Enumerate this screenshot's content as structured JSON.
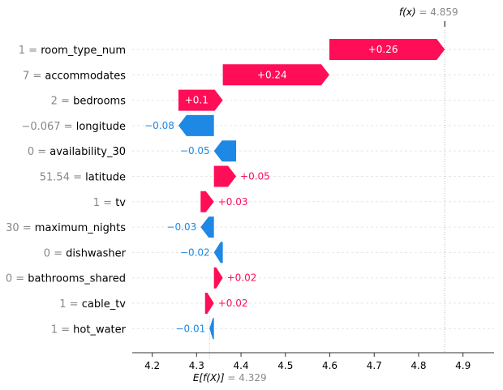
{
  "chart_data": {
    "type": "waterfall",
    "top_label": {
      "prefix": "f(x)",
      "value": "4.859"
    },
    "bottom_label": {
      "prefix": "E[f(X)]",
      "value": "4.329"
    },
    "base_value": 4.329,
    "output_value": 4.859,
    "xlim": [
      4.155,
      4.97
    ],
    "xticks": [
      {
        "value": 4.2,
        "label": "4.2"
      },
      {
        "value": 4.3,
        "label": "4.3"
      },
      {
        "value": 4.4,
        "label": "4.4"
      },
      {
        "value": 4.5,
        "label": "4.5"
      },
      {
        "value": 4.6,
        "label": "4.6"
      },
      {
        "value": 4.7,
        "label": "4.7"
      },
      {
        "value": 4.8,
        "label": "4.8"
      },
      {
        "value": 4.9,
        "label": "4.9"
      }
    ],
    "features": [
      {
        "value_text": "1 =",
        "name": "room_type_num",
        "contribution": 0.26,
        "label": "+0.26",
        "start": 4.599
      },
      {
        "value_text": "7 =",
        "name": "accommodates",
        "contribution": 0.24,
        "label": "+0.24",
        "start": 4.359
      },
      {
        "value_text": "2 =",
        "name": "bedrooms",
        "contribution": 0.1,
        "label": "+0.1",
        "start": 4.259
      },
      {
        "value_text": "−0.067 =",
        "name": "longitude",
        "contribution": -0.08,
        "label": "−0.08",
        "start": 4.339
      },
      {
        "value_text": "0 =",
        "name": "availability_30",
        "contribution": -0.05,
        "label": "−0.05",
        "start": 4.389
      },
      {
        "value_text": "51.54 =",
        "name": "latitude",
        "contribution": 0.05,
        "label": "+0.05",
        "start": 4.339
      },
      {
        "value_text": "1 =",
        "name": "tv",
        "contribution": 0.03,
        "label": "+0.03",
        "start": 4.309
      },
      {
        "value_text": "30 =",
        "name": "maximum_nights",
        "contribution": -0.03,
        "label": "−0.03",
        "start": 4.339
      },
      {
        "value_text": "0 =",
        "name": "dishwasher",
        "contribution": -0.02,
        "label": "−0.02",
        "start": 4.359
      },
      {
        "value_text": "0 =",
        "name": "bathrooms_shared",
        "contribution": 0.02,
        "label": "+0.02",
        "start": 4.339
      },
      {
        "value_text": "1 =",
        "name": "cable_tv",
        "contribution": 0.02,
        "label": "+0.02",
        "start": 4.319
      },
      {
        "value_text": "1 =",
        "name": "hot_water",
        "contribution": -0.01,
        "label": "−0.01",
        "start": 4.339
      }
    ],
    "colors": {
      "positive": "#ff0d57",
      "negative": "#1e88e5",
      "label_gray": "#888888"
    },
    "grid": true
  }
}
